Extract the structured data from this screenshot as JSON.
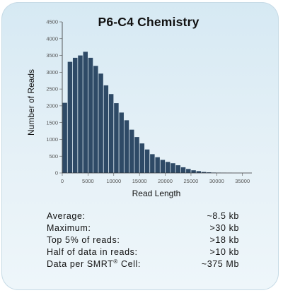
{
  "chart_data": {
    "type": "bar",
    "title": "P6-C4 Chemistry",
    "xlabel": "Read Length",
    "ylabel": "Number of Reads",
    "x_ticks": [
      0,
      5000,
      10000,
      15000,
      20000,
      25000,
      30000,
      35000
    ],
    "y_ticks": [
      0,
      500,
      1000,
      1500,
      2000,
      2500,
      3000,
      3500,
      4000,
      4500
    ],
    "xlim": [
      0,
      36000
    ],
    "ylim": [
      0,
      4500
    ],
    "bin_width": 1000,
    "bin_starts": [
      0,
      1000,
      2000,
      3000,
      4000,
      5000,
      6000,
      7000,
      8000,
      9000,
      10000,
      11000,
      12000,
      13000,
      14000,
      15000,
      16000,
      17000,
      18000,
      19000,
      20000,
      21000,
      22000,
      23000,
      24000,
      25000,
      26000,
      27000,
      28000,
      29000,
      30000,
      31000,
      32000
    ],
    "values": [
      2090,
      3310,
      3430,
      3500,
      3610,
      3430,
      3190,
      2960,
      2610,
      2350,
      2080,
      1800,
      1570,
      1290,
      1070,
      880,
      700,
      560,
      470,
      390,
      330,
      290,
      230,
      170,
      120,
      80,
      55,
      30,
      20,
      12,
      8,
      5,
      3
    ],
    "color": "#2e4a66",
    "grid": false
  },
  "stats": [
    {
      "label": "Average:",
      "value": "~8.5  kb"
    },
    {
      "label": "Maximum:",
      "value": ">30  kb"
    },
    {
      "label": "Top  5% of reads:",
      "value": ">18  kb"
    },
    {
      "label": "Half of data in reads:",
      "value": ">10  kb"
    },
    {
      "label": "Data per SMRT",
      "sup": "®",
      "label_suffix": " Cell:",
      "value": "~375 Mb"
    }
  ]
}
